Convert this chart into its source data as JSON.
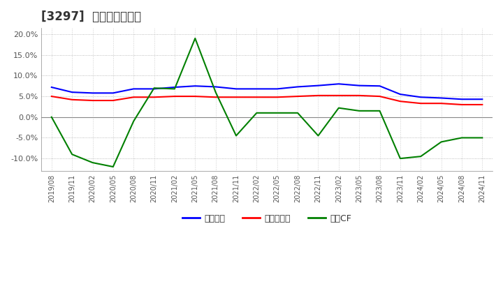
{
  "title": "[3297]  マージンの推移",
  "legend_labels": [
    "経常利益",
    "当期純利益",
    "営業CF"
  ],
  "line_colors": [
    "#0000FF",
    "#FF0000",
    "#008000"
  ],
  "ylim": [
    -0.13,
    0.215
  ],
  "yticks": [
    -0.1,
    -0.05,
    0.0,
    0.05,
    0.1,
    0.15,
    0.2
  ],
  "background_color": "#ffffff",
  "grid_color": "#aaaaaa",
  "dates": [
    "2019/08",
    "2019/11",
    "2020/02",
    "2020/05",
    "2020/08",
    "2020/11",
    "2021/02",
    "2021/05",
    "2021/08",
    "2021/11",
    "2022/02",
    "2022/05",
    "2022/08",
    "2022/11",
    "2023/02",
    "2023/05",
    "2023/08",
    "2023/11",
    "2024/02",
    "2024/05",
    "2024/08",
    "2024/11"
  ],
  "operating_profit_margin": [
    0.072,
    0.06,
    0.058,
    0.058,
    0.068,
    0.068,
    0.072,
    0.075,
    0.073,
    0.068,
    0.068,
    0.068,
    0.073,
    0.076,
    0.08,
    0.076,
    0.075,
    0.055,
    0.048,
    0.046,
    0.043,
    0.043
  ],
  "net_profit_margin": [
    0.05,
    0.042,
    0.04,
    0.04,
    0.048,
    0.048,
    0.05,
    0.05,
    0.048,
    0.048,
    0.048,
    0.048,
    0.05,
    0.052,
    0.052,
    0.052,
    0.05,
    0.038,
    0.033,
    0.033,
    0.03,
    0.03
  ],
  "operating_cf_margin": [
    0.0,
    -0.09,
    -0.11,
    -0.12,
    -0.01,
    0.07,
    0.068,
    0.19,
    0.06,
    -0.045,
    0.01,
    0.01,
    0.01,
    -0.045,
    0.022,
    0.015,
    0.015,
    -0.1,
    -0.095,
    -0.06,
    -0.05,
    -0.05
  ]
}
